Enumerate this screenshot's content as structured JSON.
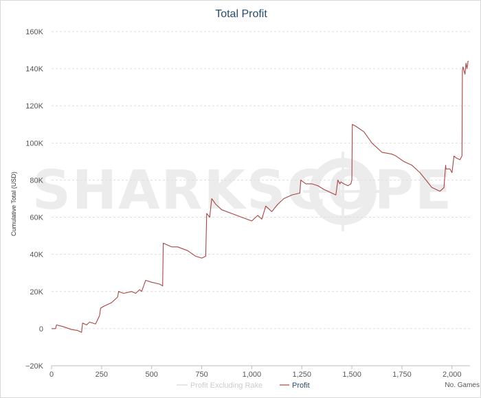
{
  "chart_data": {
    "type": "line",
    "title": "Total Profit",
    "ylabel": "Cumulative Total (USD)",
    "xlabel_note": "No. Games",
    "watermark": "SHARKSCOPE",
    "xlim": [
      0,
      2090
    ],
    "ylim": [
      -20000,
      160000
    ],
    "x_ticks": [
      0,
      250,
      500,
      750,
      1000,
      1250,
      1500,
      1750,
      2000
    ],
    "x_tick_labels": [
      "0",
      "250",
      "500",
      "750",
      "1,000",
      "1,250",
      "1,500",
      "1,750",
      "2,000"
    ],
    "y_ticks": [
      -20000,
      0,
      20000,
      40000,
      60000,
      80000,
      100000,
      120000,
      140000,
      160000
    ],
    "y_tick_labels": [
      "−20K",
      "0",
      "20K",
      "40K",
      "60K",
      "80K",
      "100K",
      "120K",
      "140K",
      "160K"
    ],
    "grid": true,
    "legend_position": "bottom",
    "colors": {
      "profit": "#a94442",
      "profit_excluding_rake": "#cccccc",
      "title": "#274b6d"
    },
    "series": [
      {
        "name": "Profit Excluding Rake",
        "x": [],
        "y": []
      },
      {
        "name": "Profit",
        "x": [
          0,
          20,
          25,
          60,
          100,
          130,
          150,
          155,
          175,
          190,
          220,
          240,
          245,
          260,
          280,
          300,
          330,
          335,
          360,
          400,
          420,
          440,
          450,
          470,
          500,
          540,
          555,
          558,
          600,
          630,
          680,
          720,
          750,
          770,
          775,
          790,
          800,
          820,
          850,
          900,
          950,
          1000,
          1030,
          1050,
          1070,
          1100,
          1130,
          1160,
          1200,
          1240,
          1245,
          1270,
          1300,
          1330,
          1360,
          1400,
          1420,
          1430,
          1440,
          1445,
          1460,
          1480,
          1495,
          1500,
          1502,
          1520,
          1560,
          1600,
          1650,
          1700,
          1720,
          1760,
          1800,
          1840,
          1870,
          1900,
          1920,
          1940,
          1960,
          1968,
          1970,
          1990,
          2000,
          2010,
          2020,
          2040,
          2050,
          2052,
          2055,
          2065,
          2070,
          2075,
          2080,
          2083
        ],
        "y": [
          0,
          0,
          2000,
          1000,
          -500,
          -1000,
          -2000,
          3000,
          2000,
          3500,
          2500,
          7000,
          11000,
          12000,
          13000,
          14000,
          17000,
          20000,
          19000,
          20000,
          19000,
          21000,
          20000,
          26000,
          25000,
          24000,
          23000,
          46000,
          44000,
          44000,
          42000,
          39000,
          38000,
          39000,
          62000,
          60000,
          70000,
          67000,
          64000,
          62000,
          60000,
          58000,
          61000,
          59000,
          66000,
          63000,
          67000,
          70000,
          72000,
          73000,
          80000,
          78000,
          78000,
          77000,
          75000,
          73000,
          72000,
          80000,
          78000,
          79000,
          78000,
          77000,
          78000,
          80000,
          110000,
          109000,
          106000,
          100000,
          95000,
          94000,
          93000,
          90000,
          88000,
          84000,
          80000,
          76000,
          75000,
          74000,
          76000,
          88000,
          86000,
          86000,
          84000,
          93000,
          92000,
          91000,
          93000,
          139000,
          141000,
          137000,
          143000,
          140000,
          144000,
          144000
        ]
      }
    ]
  }
}
